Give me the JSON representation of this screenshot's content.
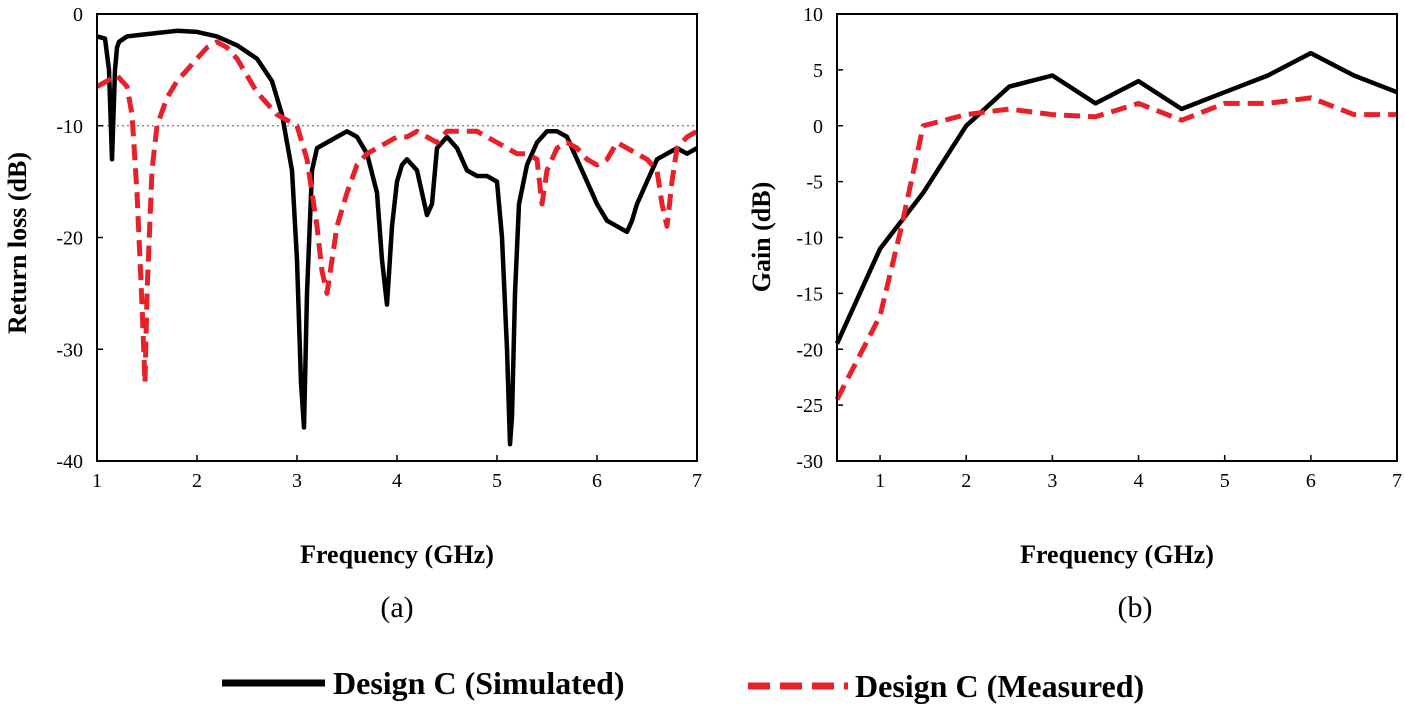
{
  "legend": {
    "simulated_label": "Design C (Simulated)",
    "measured_label": "Design C (Measured)",
    "simulated_color": "#000000",
    "measured_color": "#e8202a"
  },
  "chart_data": [
    {
      "type": "line",
      "panel_label": "(a)",
      "title": "",
      "xlabel": "Frequency (GHz)",
      "ylabel": "Return loss (dB)",
      "xlim": [
        1,
        7
      ],
      "ylim": [
        -40,
        0
      ],
      "xticks": [
        1,
        2,
        3,
        4,
        5,
        6,
        7
      ],
      "yticks": [
        0,
        -10,
        -20,
        -30,
        -40
      ],
      "xtick_labels": [
        "1",
        "2",
        "3",
        "4",
        "5",
        "6",
        "7"
      ],
      "ytick_labels": [
        "0",
        "-10",
        "-20",
        "-30",
        "-40"
      ],
      "reference_line": {
        "y": -10,
        "style": "dotted"
      },
      "series": [
        {
          "name": "Design C (Simulated)",
          "color": "#000000",
          "style": "solid",
          "x": [
            1.0,
            1.08,
            1.12,
            1.15,
            1.18,
            1.2,
            1.22,
            1.3,
            1.5,
            1.8,
            2.0,
            2.2,
            2.4,
            2.6,
            2.75,
            2.85,
            2.95,
            3.0,
            3.04,
            3.07,
            3.1,
            3.15,
            3.2,
            3.3,
            3.4,
            3.5,
            3.6,
            3.7,
            3.8,
            3.85,
            3.9,
            3.95,
            4.0,
            4.05,
            4.1,
            4.2,
            4.25,
            4.3,
            4.35,
            4.4,
            4.5,
            4.6,
            4.7,
            4.8,
            4.9,
            5.0,
            5.05,
            5.1,
            5.13,
            5.15,
            5.18,
            5.22,
            5.3,
            5.4,
            5.5,
            5.6,
            5.7,
            5.8,
            5.9,
            6.0,
            6.1,
            6.2,
            6.3,
            6.35,
            6.4,
            6.5,
            6.6,
            6.7,
            6.8,
            6.9,
            7.0
          ],
          "y": [
            -2,
            -2.2,
            -5,
            -13,
            -5,
            -3,
            -2.5,
            -2,
            -1.8,
            -1.5,
            -1.6,
            -2,
            -2.8,
            -4,
            -6,
            -9,
            -14,
            -22,
            -33,
            -37,
            -25,
            -14,
            -12,
            -11.5,
            -11,
            -10.5,
            -11,
            -12.5,
            -16,
            -22,
            -26,
            -19,
            -15,
            -13.5,
            -13,
            -14,
            -16,
            -18,
            -17,
            -12,
            -11,
            -12,
            -14,
            -14.5,
            -14.5,
            -15,
            -20,
            -30,
            -38.5,
            -36,
            -25,
            -17,
            -13.5,
            -11.5,
            -10.5,
            -10.5,
            -11,
            -13,
            -15,
            -17,
            -18.5,
            -19,
            -19.5,
            -18.5,
            -17,
            -15,
            -13,
            -12.5,
            -12,
            -12.5,
            -12
          ]
        },
        {
          "name": "Design C (Measured)",
          "color": "#e8202a",
          "style": "dashed",
          "x": [
            1.0,
            1.1,
            1.2,
            1.3,
            1.35,
            1.4,
            1.45,
            1.48,
            1.5,
            1.55,
            1.6,
            1.7,
            1.8,
            1.9,
            2.0,
            2.1,
            2.2,
            2.3,
            2.4,
            2.5,
            2.6,
            2.7,
            2.8,
            2.9,
            3.0,
            3.1,
            3.2,
            3.25,
            3.3,
            3.35,
            3.4,
            3.5,
            3.6,
            3.7,
            3.8,
            3.9,
            4.0,
            4.1,
            4.2,
            4.3,
            4.4,
            4.5,
            4.6,
            4.7,
            4.8,
            4.9,
            5.0,
            5.1,
            5.2,
            5.3,
            5.4,
            5.45,
            5.5,
            5.6,
            5.7,
            5.8,
            5.9,
            6.0,
            6.1,
            6.2,
            6.3,
            6.4,
            6.5,
            6.6,
            6.65,
            6.7,
            6.75,
            6.8,
            6.9,
            7.0
          ],
          "y": [
            -6.5,
            -6,
            -5.5,
            -6.5,
            -9,
            -16,
            -26,
            -33,
            -25,
            -14,
            -10,
            -7.5,
            -6,
            -5,
            -4,
            -3,
            -2.5,
            -3,
            -4,
            -5.5,
            -7,
            -8,
            -9,
            -9.5,
            -10,
            -13,
            -19,
            -23,
            -25,
            -22,
            -19,
            -16,
            -13.5,
            -12.5,
            -12,
            -11.5,
            -11,
            -11,
            -10.5,
            -11,
            -11.5,
            -10.5,
            -10.5,
            -10.5,
            -10.5,
            -11,
            -11.5,
            -12,
            -12.5,
            -12.5,
            -13,
            -17,
            -14,
            -12,
            -11.5,
            -12,
            -13,
            -13.5,
            -13,
            -11.5,
            -12,
            -12.5,
            -13,
            -14,
            -17,
            -19,
            -15,
            -12,
            -11,
            -10.5
          ]
        }
      ]
    },
    {
      "type": "line",
      "panel_label": "(b)",
      "title": "",
      "xlabel": "Frequency (GHz)",
      "ylabel": "Gain (dB)",
      "xlim": [
        0.5,
        7
      ],
      "ylim": [
        -30,
        10
      ],
      "xticks": [
        1,
        2,
        3,
        4,
        5,
        6,
        7
      ],
      "yticks": [
        10,
        5,
        0,
        -5,
        -10,
        -15,
        -20,
        -25,
        -30
      ],
      "xtick_labels": [
        "1",
        "2",
        "3",
        "4",
        "5",
        "6",
        "7"
      ],
      "ytick_labels": [
        "10",
        "5",
        "0",
        "-5",
        "-10",
        "-15",
        "-20",
        "-25",
        "-30"
      ],
      "series": [
        {
          "name": "Design C (Simulated)",
          "color": "#000000",
          "style": "solid",
          "x": [
            0.5,
            1.0,
            1.5,
            2.0,
            2.5,
            3.0,
            3.5,
            4.0,
            4.5,
            5.0,
            5.5,
            6.0,
            6.5,
            7.0
          ],
          "y": [
            -19.5,
            -11,
            -6,
            0,
            3.5,
            4.5,
            2,
            4,
            1.5,
            3,
            4.5,
            6.5,
            4.5,
            3
          ]
        },
        {
          "name": "Design C (Measured)",
          "color": "#e8202a",
          "style": "dashed",
          "x": [
            0.5,
            1.0,
            1.25,
            1.5,
            2.0,
            2.5,
            3.0,
            3.5,
            4.0,
            4.5,
            5.0,
            5.5,
            6.0,
            6.5,
            7.0
          ],
          "y": [
            -24.5,
            -17,
            -9,
            0,
            1,
            1.5,
            1,
            0.8,
            2,
            0.5,
            2,
            2,
            2.5,
            1,
            1
          ]
        }
      ]
    }
  ]
}
